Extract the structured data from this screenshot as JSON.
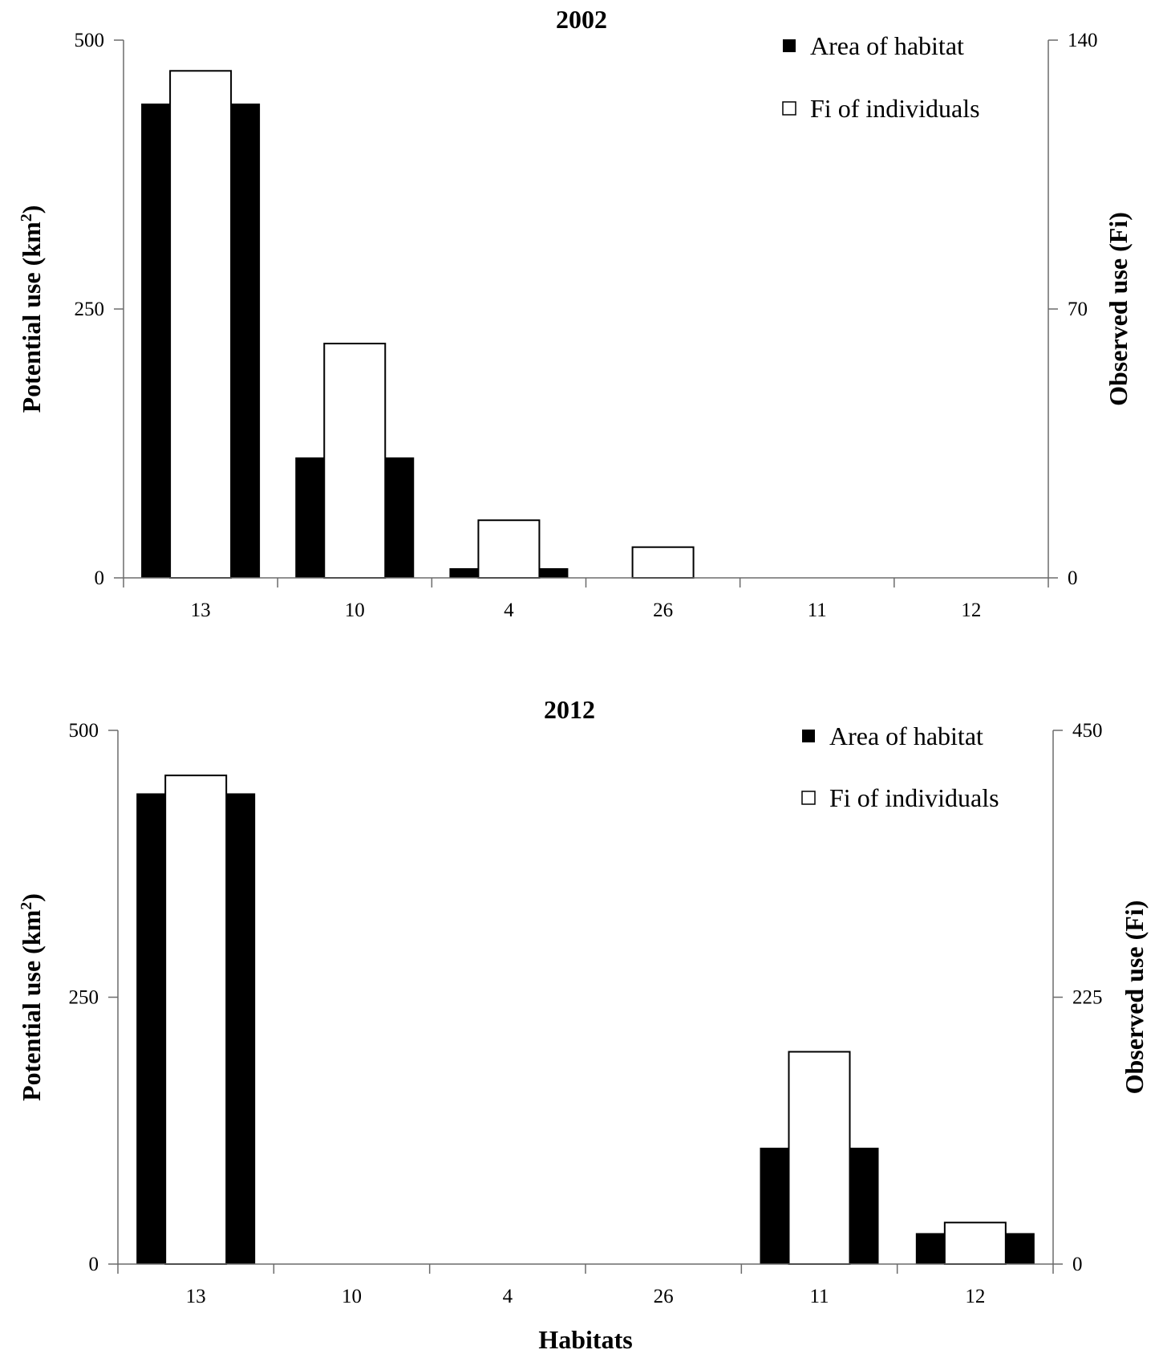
{
  "chart_data": [
    {
      "type": "bar",
      "title": "2002",
      "categories": [
        "13",
        "10",
        "4",
        "26",
        "11",
        "12"
      ],
      "ylabel": "Potential use (km",
      "ylabel_sup": "2",
      "ylabel_end": ")",
      "y2label": "Observed use (Fi)",
      "xlabel": "",
      "ylim": [
        0,
        500
      ],
      "y2lim": [
        0,
        140
      ],
      "yticks": [
        "0",
        "250",
        "500"
      ],
      "y2ticks": [
        "0",
        "70",
        "140"
      ],
      "legend_position": "top-right",
      "series": [
        {
          "name": "Area of habitat",
          "axis": "left",
          "color": "#000000",
          "values": [
            441,
            112,
            9,
            0,
            0,
            0
          ]
        },
        {
          "name": "Fi of individuals",
          "axis": "right",
          "color": "#ffffff",
          "values": [
            132,
            61,
            15,
            8,
            0,
            0
          ]
        }
      ]
    },
    {
      "type": "bar",
      "title": "2012",
      "categories": [
        "13",
        "10",
        "4",
        "26",
        "11",
        "12"
      ],
      "ylabel": "Potential use (km",
      "ylabel_sup": "2",
      "ylabel_end": ")",
      "y2label": "Observed use (Fi)",
      "xlabel": "Habitats",
      "ylim": [
        0,
        500
      ],
      "y2lim": [
        0,
        450
      ],
      "yticks": [
        "0",
        "250",
        "500"
      ],
      "y2ticks": [
        "0",
        "225",
        "450"
      ],
      "legend_position": "top-right",
      "series": [
        {
          "name": "Area of habitat",
          "axis": "left",
          "color": "#000000",
          "values": [
            441,
            0,
            0,
            0,
            109,
            29
          ]
        },
        {
          "name": "Fi of individuals",
          "axis": "right",
          "color": "#ffffff",
          "values": [
            412,
            0,
            0,
            0,
            179,
            35
          ]
        }
      ]
    }
  ]
}
